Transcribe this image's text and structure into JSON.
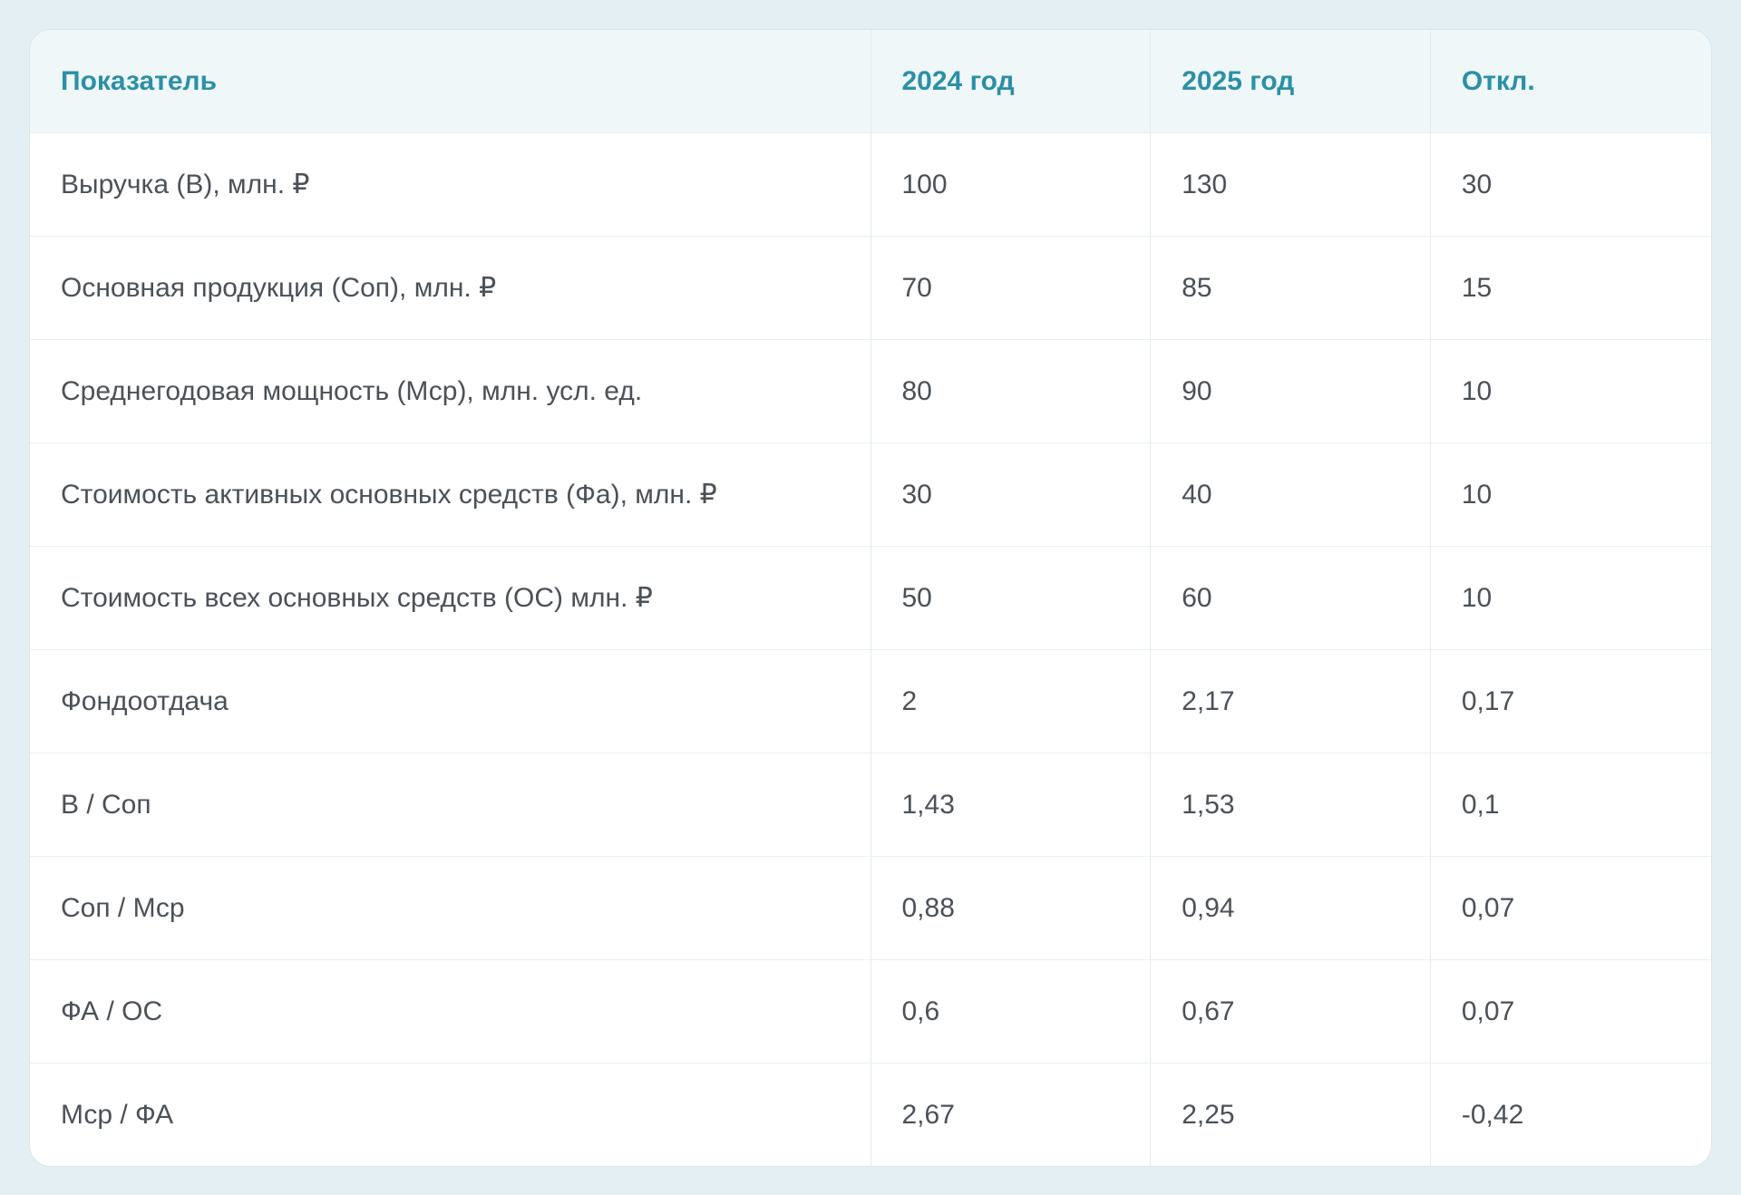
{
  "page": {
    "background_color": "#e3eff2",
    "card_background": "#ffffff",
    "header_background": "#f0f7f9",
    "accent_color": "#2b90a7",
    "text_color": "#4b5157",
    "divider_color": "#e7f0f3"
  },
  "chart_data": {
    "type": "table",
    "title": "",
    "columns": [
      "Показатель",
      "2024 год",
      "2025 год",
      "Откл."
    ],
    "rows": [
      [
        "Выручка (В), млн. ₽",
        "100",
        "130",
        "30"
      ],
      [
        "Основная продукция (Соп), млн. ₽",
        "70",
        "85",
        "15"
      ],
      [
        "Среднегодовая мощность (Мср), млн. усл. ед.",
        "80",
        "90",
        "10"
      ],
      [
        "Стоимость активных основных средств (Фа), млн. ₽",
        "30",
        "40",
        "10"
      ],
      [
        "Стоимость всех основных средств (ОС) млн. ₽",
        "50",
        "60",
        "10"
      ],
      [
        "Фондоотдача",
        "2",
        "2,17",
        "0,17"
      ],
      [
        "В / Соп",
        "1,43",
        "1,53",
        "0,1"
      ],
      [
        "Соп / Мср",
        "0,88",
        "0,94",
        "0,07"
      ],
      [
        "ФА / ОС",
        "0,6",
        "0,67",
        "0,07"
      ],
      [
        "Мср / ФА",
        "2,67",
        "2,25",
        "-0,42"
      ]
    ]
  }
}
